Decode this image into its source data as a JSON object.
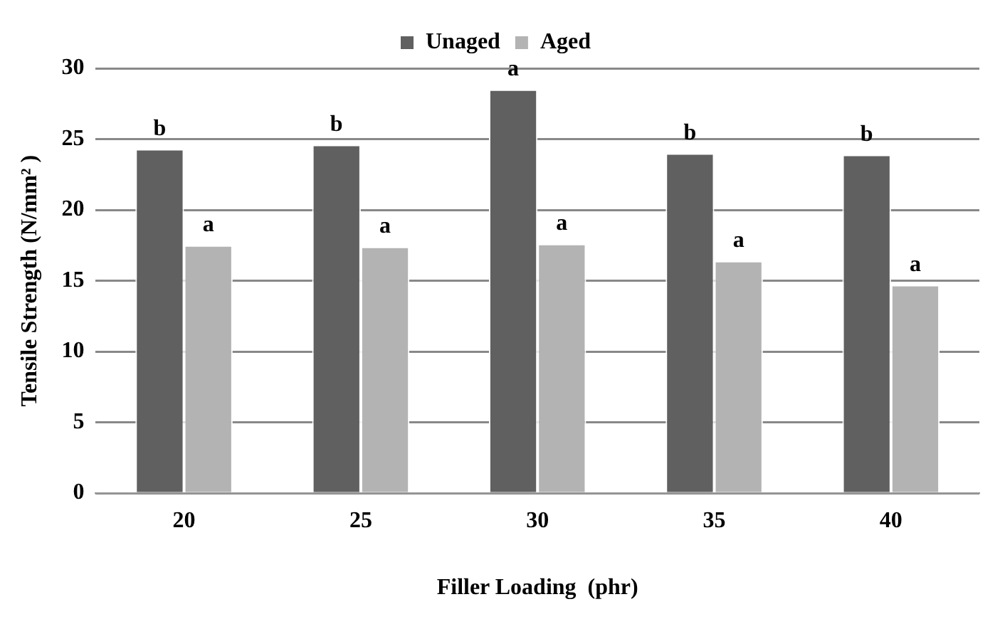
{
  "chart_data": {
    "type": "bar",
    "xlabel": "Filler Loading  (phr)",
    "ylabel": "Tensile Strength (N/mm² )",
    "categories": [
      "20",
      "25",
      "30",
      "35",
      "40"
    ],
    "series": [
      {
        "name": "Unaged",
        "color": "#606060",
        "values": [
          24.3,
          24.6,
          28.5,
          24.0,
          23.9
        ],
        "value_labels": [
          "b",
          "b",
          "a",
          "b",
          "b"
        ]
      },
      {
        "name": "Aged",
        "color": "#b3b3b3",
        "values": [
          17.5,
          17.4,
          17.6,
          16.4,
          14.7
        ],
        "value_labels": [
          "a",
          "a",
          "a",
          "a",
          "a"
        ]
      }
    ],
    "ylim": [
      0,
      30
    ],
    "yticks": [
      0,
      5,
      10,
      15,
      20,
      25,
      30
    ],
    "grid": "y",
    "legend": "top"
  }
}
